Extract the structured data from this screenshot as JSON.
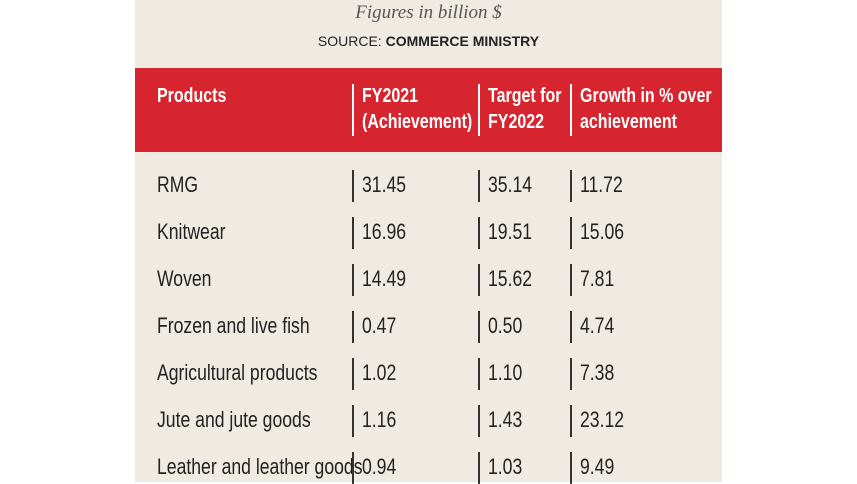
{
  "header": {
    "subtitle": "Figures in billion $",
    "source_label": "SOURCE:",
    "source": "COMMERCE MINISTRY"
  },
  "table": {
    "columns": [
      [
        "Products"
      ],
      [
        "FY2021",
        "(Achievement)"
      ],
      [
        "Target for",
        "FY2022"
      ],
      [
        "Growth in % over",
        "achievement"
      ]
    ],
    "rows": [
      [
        "RMG",
        "31.45",
        "35.14",
        "11.72"
      ],
      [
        "Knitwear",
        "16.96",
        "19.51",
        "15.06"
      ],
      [
        "Woven",
        "14.49",
        "15.62",
        "7.81"
      ],
      [
        "Frozen and live fish",
        "0.47",
        "0.50",
        "4.74"
      ],
      [
        "Agricultural products",
        "1.02",
        "1.10",
        "7.38"
      ],
      [
        "Jute and jute goods",
        "1.16",
        "1.43",
        "23.12"
      ],
      [
        "Leather and leather goods",
        "0.94",
        "1.03",
        "9.49"
      ]
    ]
  }
}
